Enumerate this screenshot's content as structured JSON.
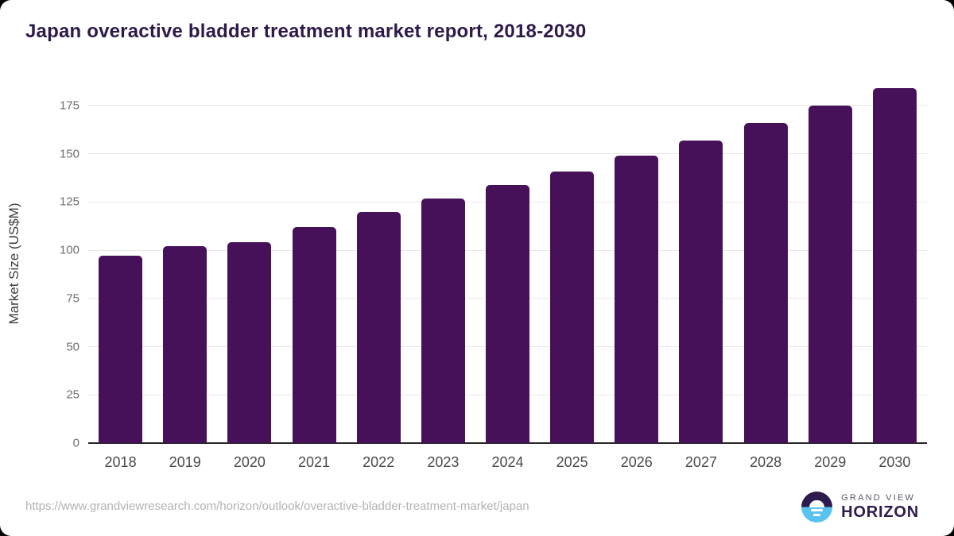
{
  "title": "Japan overactive bladder treatment market report, 2018-2030",
  "chart_data": {
    "type": "bar",
    "categories": [
      "2018",
      "2019",
      "2020",
      "2021",
      "2022",
      "2023",
      "2024",
      "2025",
      "2026",
      "2027",
      "2028",
      "2029",
      "2030"
    ],
    "values": [
      97,
      102,
      104,
      112,
      120,
      127,
      134,
      141,
      149,
      157,
      166,
      175,
      184
    ],
    "title": "Japan overactive bladder treatment market report, 2018-2030",
    "xlabel": "",
    "ylabel": "Market Size (US$M)",
    "ylim": [
      0,
      186.5
    ],
    "yticks": [
      0,
      25,
      50,
      75,
      100,
      125,
      150,
      175
    ],
    "grid": true,
    "legend": "none",
    "bar_color": "#471159"
  },
  "footer": {
    "source_url": "https://www.grandviewresearch.com/horizon/outlook/overactive-bladder-treatment-market/japan",
    "logo": {
      "top": "GRAND VIEW",
      "bottom": "HORIZON"
    }
  },
  "colors": {
    "title": "#2e1a4a",
    "bar": "#471159",
    "gridline": "#e8e8e8",
    "axis_line": "#262626",
    "tick_label": "#6f6f6f",
    "x_label": "#4a4a4a",
    "url_text": "#b2b2b2",
    "logo_blue": "#58c3ef",
    "logo_purple": "#2d1b4d"
  }
}
